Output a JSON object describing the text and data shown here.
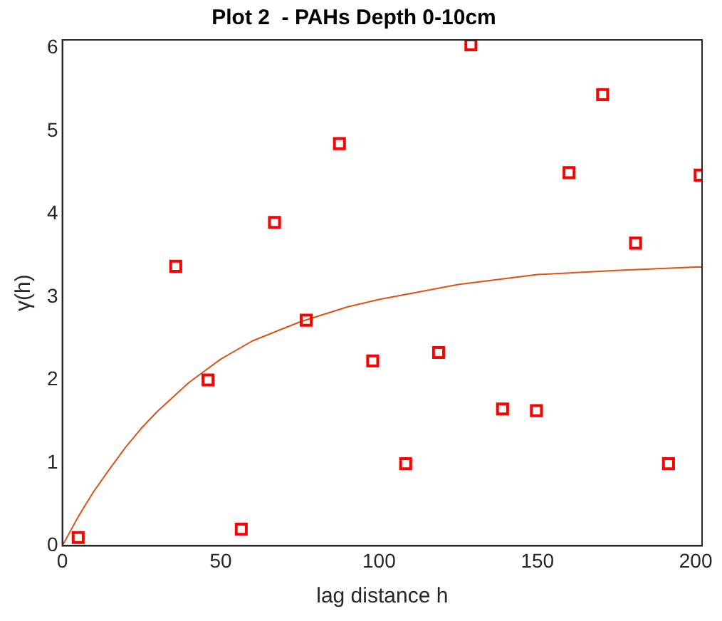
{
  "chart_data": {
    "type": "scatter",
    "title": "Plot 2  - PAHs Depth 0-10cm",
    "xlabel": "lag distance h",
    "ylabel": "γ(h)",
    "xlim": [
      0,
      202
    ],
    "xticks": [
      0,
      50,
      100,
      150,
      200
    ],
    "ylim": [
      0,
      6.1
    ],
    "yticks": [
      0,
      1,
      2,
      3,
      4,
      5,
      6
    ],
    "grid": false,
    "legend": false,
    "series": [
      {
        "marker": "square",
        "color": "#ff0000",
        "x": [
          5,
          35.8,
          46,
          56.5,
          67,
          77,
          87.5,
          98,
          108.4,
          118.8,
          129,
          139,
          149.7,
          160,
          170.6,
          181,
          191.4,
          201.4
        ],
        "values": [
          0.1,
          3.37,
          2.0,
          0.2,
          3.9,
          2.72,
          4.85,
          2.23,
          0.99,
          2.33,
          6.04,
          1.65,
          1.63,
          4.5,
          5.44,
          3.65,
          0.99,
          4.47
        ]
      },
      {
        "type": "line",
        "marker": "none",
        "color": "#d95319",
        "x": [
          0,
          5,
          10,
          15,
          20,
          25,
          30,
          40,
          50,
          60,
          75,
          90,
          100,
          125,
          150,
          175,
          200,
          202
        ],
        "values": [
          0,
          0.35,
          0.66,
          0.93,
          1.19,
          1.42,
          1.62,
          1.97,
          2.25,
          2.47,
          2.7,
          2.88,
          2.97,
          3.15,
          3.27,
          3.32,
          3.36,
          3.36
        ]
      }
    ]
  }
}
